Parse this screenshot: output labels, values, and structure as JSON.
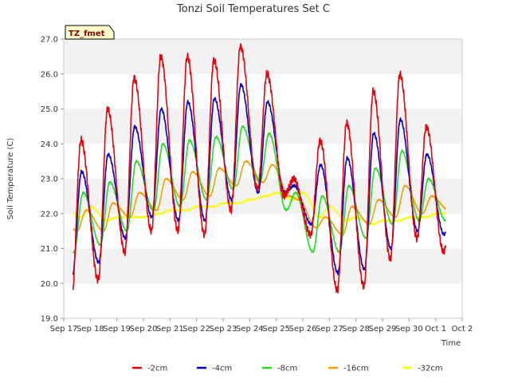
{
  "chart_data": {
    "type": "line",
    "title": "Tonzi Soil Temperatures Set C",
    "xlabel": "Time",
    "ylabel": "Soil Temperature (C)",
    "ylim": [
      19.0,
      27.0
    ],
    "yticks": [
      "19.0",
      "20.0",
      "21.0",
      "22.0",
      "23.0",
      "24.0",
      "25.0",
      "26.0",
      "27.0"
    ],
    "xlim": [
      "Sep 17",
      "Oct 2"
    ],
    "xticks": [
      "Sep 17",
      "Sep 18",
      "Sep 19",
      "Sep 20",
      "Sep 21",
      "Sep 22",
      "Sep 23",
      "Sep 24",
      "Sep 25",
      "Sep 26",
      "Sep 27",
      "Sep 28",
      "Sep 29",
      "Sep 30",
      "Oct 1",
      "Oct 2"
    ],
    "grid": "horizontal bands",
    "legend_position": "bottom",
    "annotation": "TZ_fmet",
    "series": [
      {
        "name": "-2cm",
        "color": "#e8000b",
        "daily_min": [
          19.6,
          20.1,
          20.9,
          21.5,
          21.5,
          21.4,
          22.1,
          22.7,
          22.5,
          21.4,
          19.8,
          19.9,
          20.7,
          21.3,
          20.9
        ],
        "daily_max": [
          24.1,
          25.0,
          25.9,
          26.5,
          26.5,
          26.4,
          26.8,
          26.0,
          23.0,
          24.1,
          24.6,
          25.5,
          26.0,
          24.5,
          22.5
        ]
      },
      {
        "name": "-4cm",
        "color": "#0000cc",
        "daily_min": [
          20.2,
          20.6,
          21.3,
          21.9,
          21.8,
          21.8,
          22.4,
          22.6,
          22.6,
          21.7,
          20.3,
          20.4,
          21.0,
          21.5,
          21.4
        ],
        "daily_max": [
          23.2,
          23.7,
          24.5,
          25.0,
          25.2,
          25.3,
          25.7,
          25.2,
          22.8,
          23.4,
          23.6,
          24.3,
          24.7,
          23.7,
          22.5
        ]
      },
      {
        "name": "-8cm",
        "color": "#22dd22",
        "daily_min": [
          20.9,
          21.1,
          21.5,
          22.1,
          22.2,
          22.4,
          22.7,
          22.9,
          22.1,
          20.9,
          20.9,
          21.3,
          21.7,
          21.8,
          21.8
        ],
        "daily_max": [
          22.6,
          22.9,
          23.5,
          24.0,
          24.1,
          24.2,
          24.5,
          24.3,
          22.6,
          22.5,
          22.8,
          23.3,
          23.8,
          23.0,
          22.3
        ]
      },
      {
        "name": "-16cm",
        "color": "#f0a000",
        "daily_min": [
          21.5,
          21.5,
          21.9,
          22.1,
          22.4,
          22.5,
          22.8,
          22.9,
          22.5,
          21.6,
          21.4,
          21.7,
          21.9,
          22.0,
          22.1
        ],
        "daily_max": [
          22.1,
          22.3,
          22.6,
          23.0,
          23.2,
          23.3,
          23.5,
          23.4,
          22.4,
          21.9,
          22.2,
          22.4,
          22.8,
          22.5,
          22.4
        ]
      },
      {
        "name": "-32cm",
        "color": "#ffff00",
        "daily_min": [
          21.9,
          21.8,
          21.9,
          22.0,
          22.1,
          22.2,
          22.3,
          22.5,
          22.4,
          21.9,
          21.8,
          21.7,
          21.8,
          21.9,
          22.0
        ],
        "daily_max": [
          22.2,
          21.9,
          21.9,
          22.1,
          22.2,
          22.3,
          22.4,
          22.6,
          22.6,
          22.2,
          21.9,
          21.8,
          21.9,
          22.0,
          22.1
        ]
      }
    ]
  }
}
